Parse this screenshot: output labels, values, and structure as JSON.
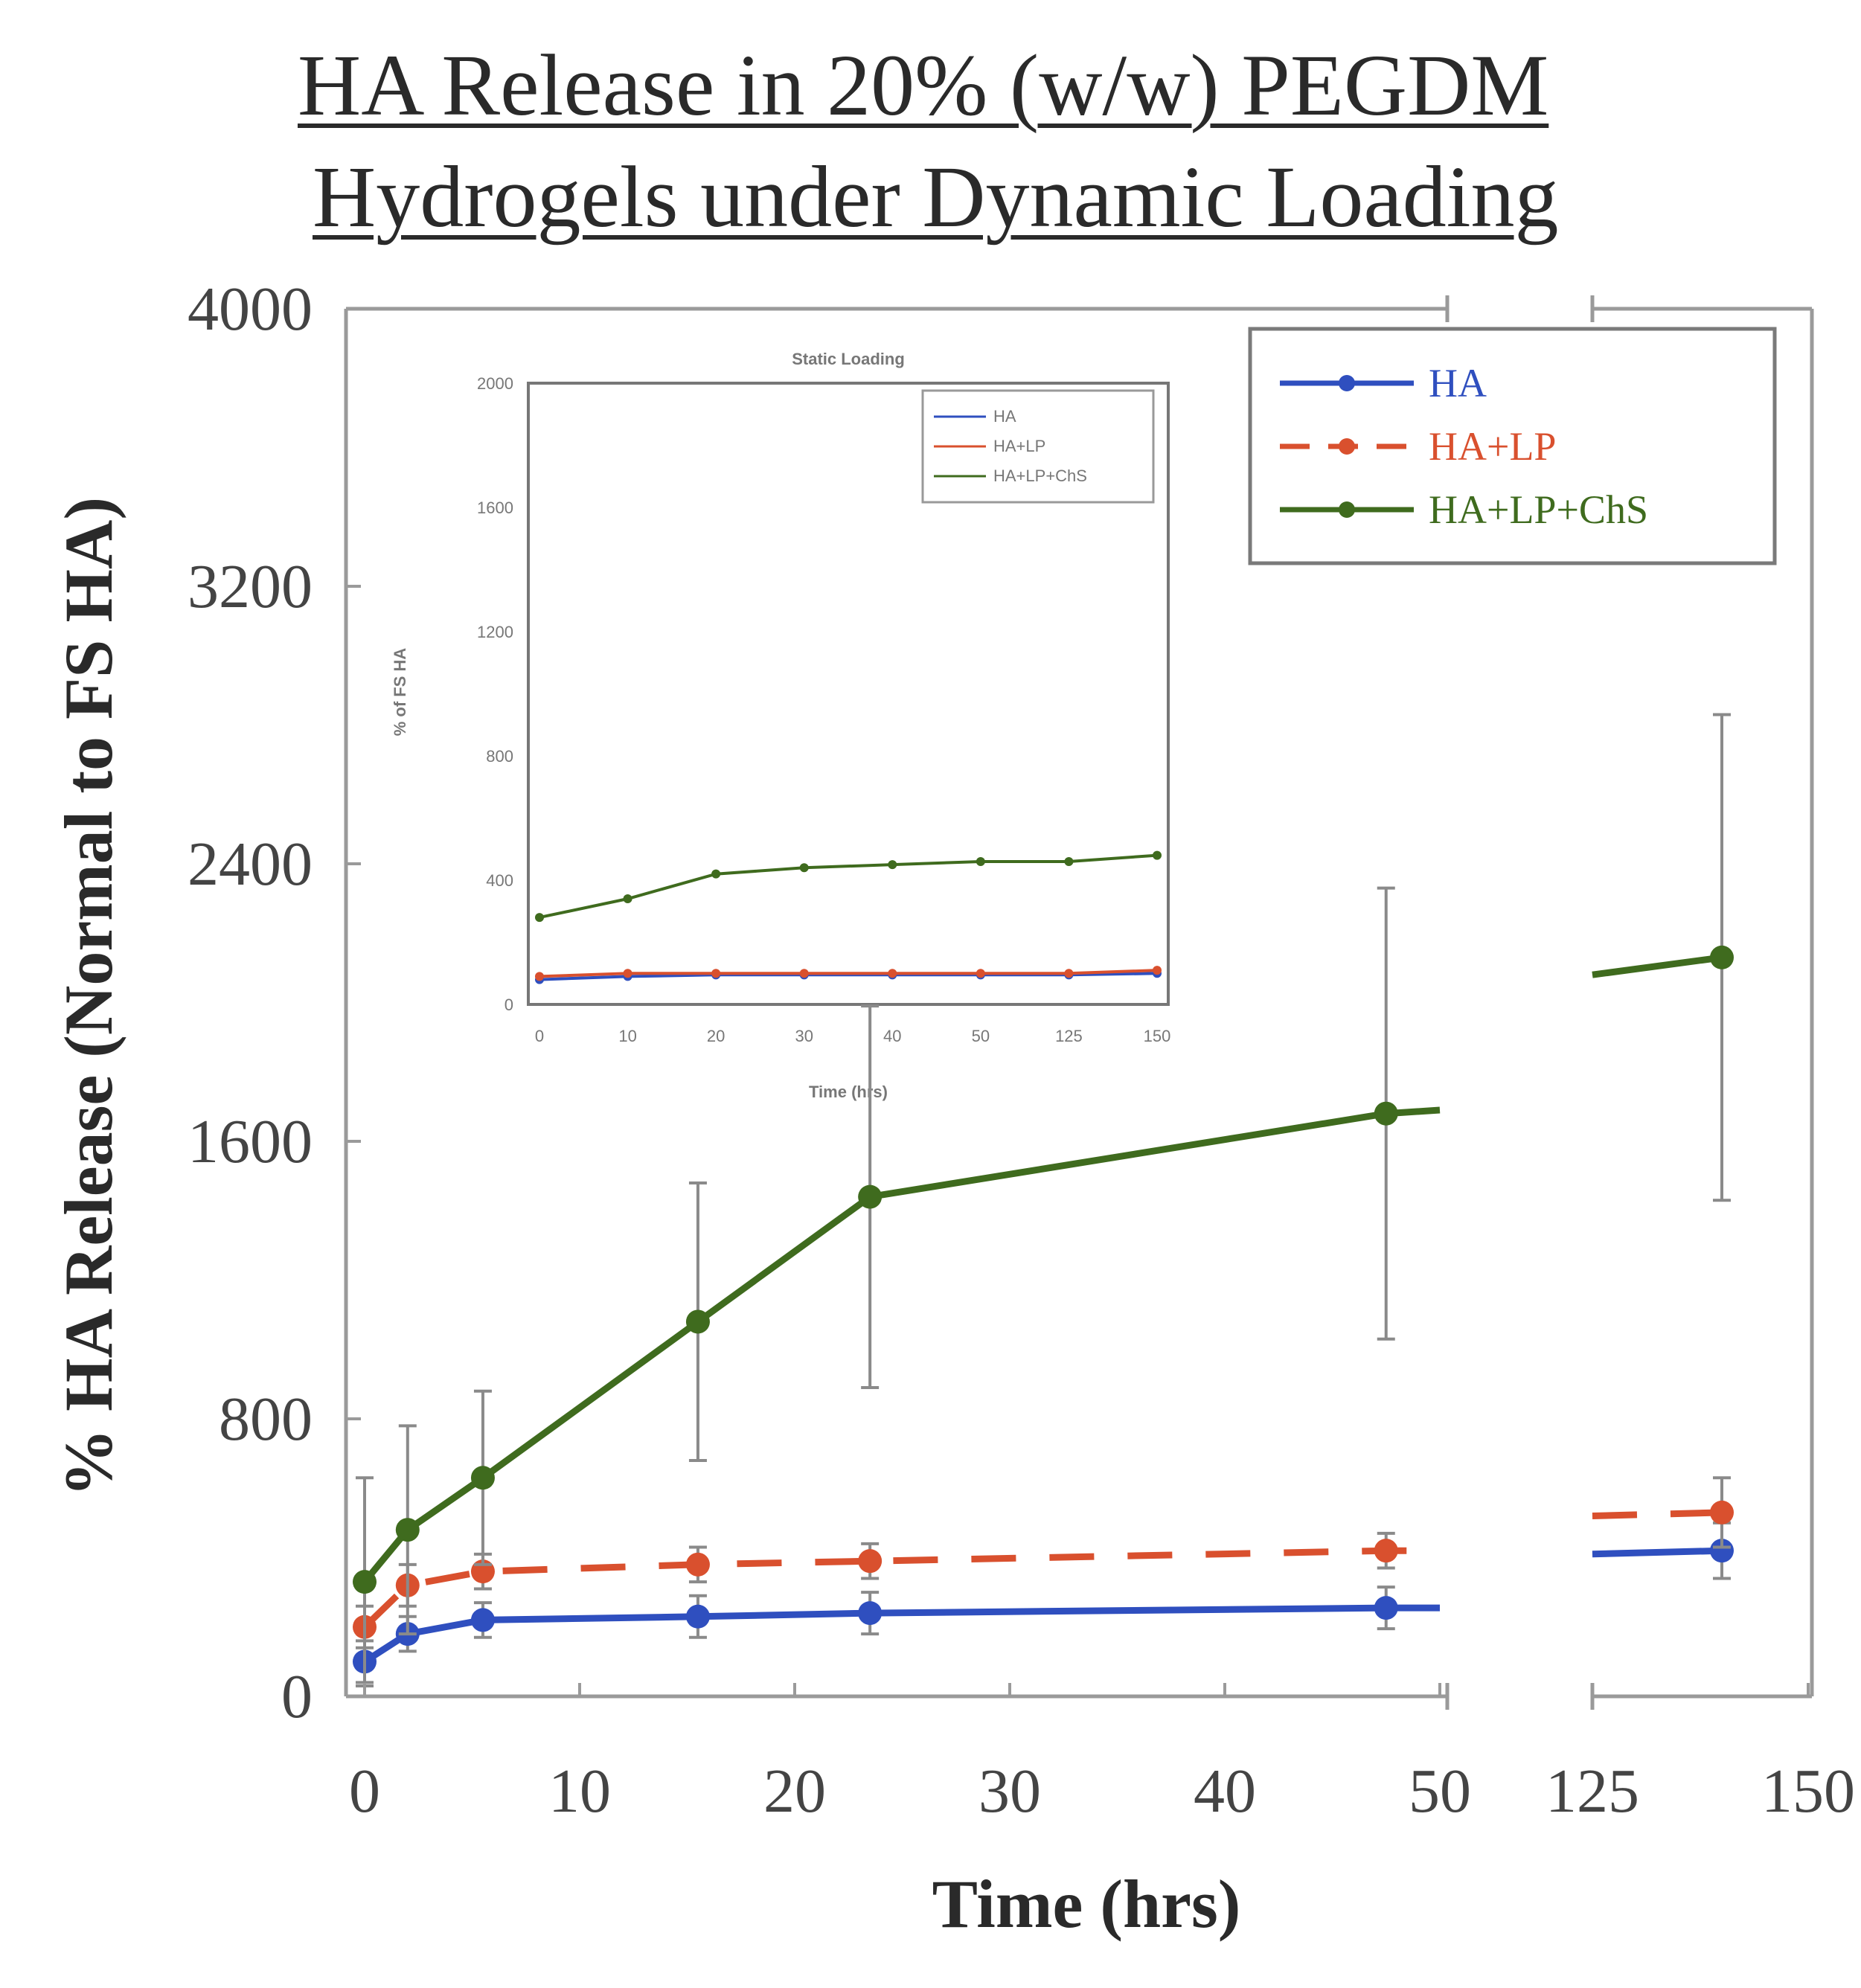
{
  "chart_data": {
    "type": "line",
    "title": [
      "HA Release in 20% (w/w) PEGDM",
      "Hydrogels under Dynamic Loading"
    ],
    "xlabel": "Time (hrs)",
    "ylabel": "% HA Release (Normal to FS HA)",
    "x_segments": [
      {
        "range": [
          0,
          50
        ],
        "ticks": [
          "0",
          "10",
          "20",
          "30",
          "40",
          "50"
        ]
      },
      {
        "range": [
          125,
          150
        ],
        "ticks": [
          "125",
          "150"
        ]
      }
    ],
    "ylim": [
      0,
      4000
    ],
    "yticks": [
      "0",
      "800",
      "1600",
      "2400",
      "3200",
      "4000"
    ],
    "grid": false,
    "legend_position": "top-right",
    "series": [
      {
        "name": "HA",
        "color": "#2f4fbf",
        "dash": "solid",
        "points": [
          {
            "x": 0,
            "y": 100,
            "err": 60
          },
          {
            "x": 2,
            "y": 180,
            "err": 50
          },
          {
            "x": 5.5,
            "y": 220,
            "err": 50
          },
          {
            "x": 15.5,
            "y": 230,
            "err": 60
          },
          {
            "x": 23.5,
            "y": 240,
            "err": 60
          },
          {
            "x": 47.5,
            "y": 255,
            "err": 60
          },
          {
            "x": 50,
            "y": 255,
            "err": null
          },
          {
            "x": 125,
            "y": 410,
            "err": null
          },
          {
            "x": 140,
            "y": 420,
            "err": 80
          }
        ]
      },
      {
        "name": "HA+LP",
        "color": "#d9502e",
        "dash": "dashed",
        "points": [
          {
            "x": 0,
            "y": 200,
            "err": 60
          },
          {
            "x": 2,
            "y": 320,
            "err": 60
          },
          {
            "x": 5.5,
            "y": 360,
            "err": 50
          },
          {
            "x": 15.5,
            "y": 380,
            "err": 50
          },
          {
            "x": 23.5,
            "y": 390,
            "err": 50
          },
          {
            "x": 47.5,
            "y": 420,
            "err": 50
          },
          {
            "x": 50,
            "y": 420,
            "err": null
          },
          {
            "x": 125,
            "y": 520,
            "err": null
          },
          {
            "x": 140,
            "y": 530,
            "err": 100
          }
        ]
      },
      {
        "name": "HA+LP+ChS",
        "color": "#3f6b1e",
        "dash": "solid",
        "points": [
          {
            "x": 0,
            "y": 330,
            "err": 300
          },
          {
            "x": 2,
            "y": 480,
            "err": 300
          },
          {
            "x": 5.5,
            "y": 630,
            "err": 250
          },
          {
            "x": 15.5,
            "y": 1080,
            "err": 400
          },
          {
            "x": 23.5,
            "y": 1440,
            "err": 550
          },
          {
            "x": 47.5,
            "y": 1680,
            "err": 650
          },
          {
            "x": 50,
            "y": 1690,
            "err": null
          },
          {
            "x": 125,
            "y": 2080,
            "err": null
          },
          {
            "x": 140,
            "y": 2130,
            "err": 700
          }
        ]
      }
    ],
    "inset": {
      "title": "Static Loading",
      "xlabel": "Time (hrs)",
      "ylabel": "% of FS HA",
      "xticks": [
        "0",
        "10",
        "20",
        "30",
        "40",
        "50",
        "125",
        "150"
      ],
      "yticks": [
        "0",
        "400",
        "800",
        "1200",
        "1600",
        "2000"
      ],
      "series": [
        {
          "name": "HA",
          "color": "#2f4fbf",
          "y": [
            80,
            90,
            95,
            95,
            95,
            95,
            95,
            100
          ]
        },
        {
          "name": "HA+LP",
          "color": "#d9502e",
          "y": [
            90,
            100,
            100,
            100,
            100,
            100,
            100,
            110
          ]
        },
        {
          "name": "HA+LP+ChS",
          "color": "#3f6b1e",
          "y": [
            280,
            340,
            420,
            440,
            450,
            460,
            460,
            480
          ]
        }
      ]
    }
  }
}
